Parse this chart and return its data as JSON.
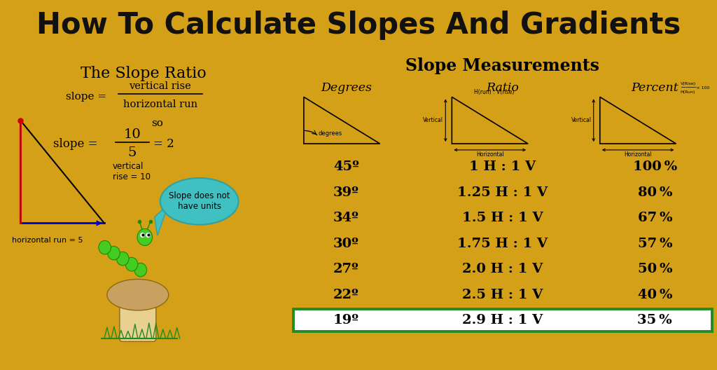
{
  "title": "How To Calculate Slopes And Gradients",
  "title_bg": "#D4A017",
  "title_color": "#111111",
  "left_panel_bg": "#ffffff",
  "right_panel_bg": "#ffffff",
  "left_panel_title": "The Slope Ratio",
  "right_panel_title": "Slope Measurements",
  "col_headers": [
    "Degrees",
    "Ratio",
    "Percent"
  ],
  "table_data": [
    [
      "45º",
      "1 H : 1 V",
      "100 %"
    ],
    [
      "39º",
      "1.25 H : 1 V",
      "80 %"
    ],
    [
      "34º",
      "1.5 H : 1 V",
      "67 %"
    ],
    [
      "30º",
      "1.75 H : 1 V",
      "57 %"
    ],
    [
      "27º",
      "2.0 H : 1 V",
      "50 %"
    ],
    [
      "22º",
      "2.5 H : 1 V",
      "40 %"
    ],
    [
      "19º",
      "2.9 H : 1 V",
      "35 %"
    ]
  ],
  "last_row_border": "#228B22",
  "separator_color": "#D4A017",
  "triangle_color": "#000000",
  "vertical_color": "#cc0000",
  "horizontal_color": "#0000cc",
  "speech_bubble_color": "#40c0c0"
}
